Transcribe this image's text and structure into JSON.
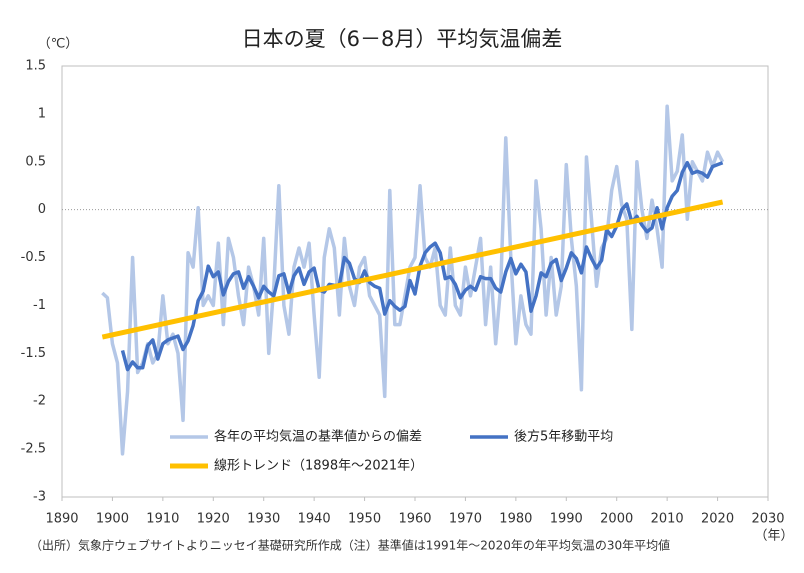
{
  "chart_data": {
    "type": "line",
    "title": "日本の夏（6－8月）平均気温偏差",
    "y_axis_label": "（℃）",
    "x_axis_label": "（年）",
    "footnote": "（出所）気象庁ウェブサイトよりニッセイ基礎研究所作成（注）基準値は1991年～2020年の年平均気温の30年平均値",
    "x": [
      1898,
      1899,
      1900,
      1901,
      1902,
      1903,
      1904,
      1905,
      1906,
      1907,
      1908,
      1909,
      1910,
      1911,
      1912,
      1913,
      1914,
      1915,
      1916,
      1917,
      1918,
      1919,
      1920,
      1921,
      1922,
      1923,
      1924,
      1925,
      1926,
      1927,
      1928,
      1929,
      1930,
      1931,
      1932,
      1933,
      1934,
      1935,
      1936,
      1937,
      1938,
      1939,
      1940,
      1941,
      1942,
      1943,
      1944,
      1945,
      1946,
      1947,
      1948,
      1949,
      1950,
      1951,
      1952,
      1953,
      1954,
      1955,
      1956,
      1957,
      1958,
      1959,
      1960,
      1961,
      1962,
      1963,
      1964,
      1965,
      1966,
      1967,
      1968,
      1969,
      1970,
      1971,
      1972,
      1973,
      1974,
      1975,
      1976,
      1977,
      1978,
      1979,
      1980,
      1981,
      1982,
      1983,
      1984,
      1985,
      1986,
      1987,
      1988,
      1989,
      1990,
      1991,
      1992,
      1993,
      1994,
      1995,
      1996,
      1997,
      1998,
      1999,
      2000,
      2001,
      2002,
      2003,
      2004,
      2005,
      2006,
      2007,
      2008,
      2009,
      2010,
      2011,
      2012,
      2013,
      2014,
      2015,
      2016,
      2017,
      2018,
      2019,
      2020,
      2021
    ],
    "series": [
      {
        "name": "各年の平均気温の基準値からの偏差",
        "color": "#b4c7e7",
        "width": 3.5,
        "values": [
          -0.87,
          -0.92,
          -1.4,
          -1.6,
          -2.55,
          -1.9,
          -0.5,
          -1.7,
          -1.6,
          -1.4,
          -1.6,
          -1.5,
          -0.9,
          -1.4,
          -1.3,
          -1.5,
          -2.2,
          -0.45,
          -0.6,
          0.02,
          -1.0,
          -0.9,
          -1.0,
          -0.35,
          -1.2,
          -0.3,
          -0.5,
          -0.9,
          -1.2,
          -0.6,
          -0.8,
          -1.1,
          -0.3,
          -1.5,
          -0.8,
          0.25,
          -1.0,
          -1.3,
          -0.6,
          -0.4,
          -0.6,
          -0.35,
          -1.1,
          -1.75,
          -0.5,
          -0.2,
          -0.4,
          -1.1,
          -0.3,
          -0.8,
          -1.0,
          -0.6,
          -0.5,
          -0.9,
          -1.0,
          -1.1,
          -1.95,
          0.2,
          -1.2,
          -1.2,
          -0.9,
          -0.6,
          -0.5,
          0.25,
          -0.5,
          -0.6,
          -0.4,
          -1.0,
          -1.1,
          -0.4,
          -1.0,
          -1.1,
          -0.6,
          -0.9,
          -0.6,
          -0.3,
          -1.2,
          -0.6,
          -1.4,
          -0.8,
          0.75,
          -0.5,
          -1.4,
          -0.9,
          -1.2,
          -1.3,
          0.3,
          -0.2,
          -1.1,
          -0.5,
          -1.1,
          -0.8,
          0.47,
          -0.3,
          -0.8,
          -1.88,
          0.55,
          -0.1,
          -0.8,
          -0.4,
          -0.3,
          0.2,
          0.45,
          0.05,
          -0.1,
          -1.25,
          0.5,
          0.0,
          -0.3,
          0.1,
          -0.2,
          -0.6,
          1.08,
          0.3,
          0.4,
          0.78,
          -0.1,
          0.5,
          0.4,
          0.3,
          0.6,
          0.45,
          0.6,
          0.5
        ]
      },
      {
        "name": "後方5年移動平均",
        "color": "#4472c4",
        "width": 3.5,
        "values": [
          null,
          null,
          null,
          null,
          -1.47,
          -1.67,
          -1.59,
          -1.65,
          -1.65,
          -1.42,
          -1.36,
          -1.56,
          -1.4,
          -1.36,
          -1.34,
          -1.32,
          -1.46,
          -1.37,
          -1.21,
          -0.95,
          -0.85,
          -0.59,
          -0.7,
          -0.65,
          -0.89,
          -0.75,
          -0.67,
          -0.65,
          -0.82,
          -0.7,
          -0.8,
          -0.92,
          -0.8,
          -0.86,
          -0.9,
          -0.69,
          -0.67,
          -0.87,
          -0.69,
          -0.61,
          -0.78,
          -0.65,
          -0.61,
          -0.84,
          -0.86,
          -0.78,
          -0.79,
          -0.79,
          -0.5,
          -0.56,
          -0.72,
          -0.76,
          -0.64,
          -0.76,
          -0.8,
          -0.82,
          -1.09,
          -0.95,
          -1.01,
          -1.05,
          -1.01,
          -0.74,
          -0.88,
          -0.59,
          -0.45,
          -0.39,
          -0.35,
          -0.45,
          -0.72,
          -0.7,
          -0.78,
          -0.92,
          -0.84,
          -0.8,
          -0.84,
          -0.7,
          -0.72,
          -0.72,
          -0.82,
          -0.86,
          -0.65,
          -0.51,
          -0.67,
          -0.57,
          -0.65,
          -1.06,
          -0.9,
          -0.66,
          -0.7,
          -0.56,
          -0.52,
          -0.74,
          -0.61,
          -0.45,
          -0.51,
          -0.66,
          -0.39,
          -0.51,
          -0.61,
          -0.53,
          -0.21,
          -0.28,
          -0.17,
          0.0,
          0.06,
          -0.13,
          -0.07,
          -0.16,
          -0.23,
          -0.19,
          0.02,
          -0.2,
          0.02,
          0.14,
          0.2,
          0.39,
          0.49,
          0.38,
          0.4,
          0.38,
          0.34,
          0.45,
          0.47,
          0.49
        ]
      },
      {
        "name": "線形トレンド（1898年～2021年）",
        "color": "#ffc000",
        "width": 5,
        "x": [
          1898,
          2021
        ],
        "values": [
          -1.33,
          0.08
        ]
      }
    ],
    "xlim": [
      1890,
      2030
    ],
    "xticks": [
      1890,
      1900,
      1910,
      1920,
      1930,
      1940,
      1950,
      1960,
      1970,
      1980,
      1990,
      2000,
      2010,
      2020,
      2030
    ],
    "ylim": [
      -3,
      1.5
    ],
    "yticks": [
      -3,
      -2.5,
      -2,
      -1.5,
      -1,
      -0.5,
      0,
      0.5,
      1,
      1.5
    ],
    "grid": false,
    "zero_line": true,
    "legend": "lower center"
  }
}
